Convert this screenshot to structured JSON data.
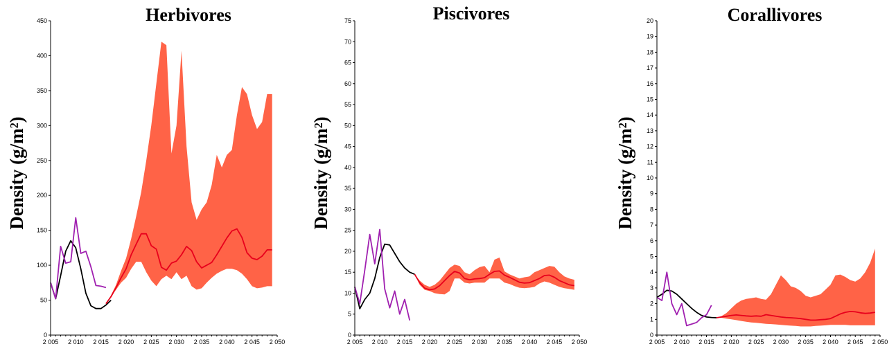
{
  "colors": {
    "band": "#ff6347",
    "median": "#e8001c",
    "model_fit": "#000000",
    "observed": "#a020b0"
  },
  "chart_data": [
    {
      "type": "line",
      "title": "Herbivores",
      "ylabel": "Density (g/m²)",
      "xlabel": "",
      "xlim": [
        2005,
        2050
      ],
      "ylim": [
        0,
        450
      ],
      "xticks": [
        2005,
        2010,
        2015,
        2020,
        2025,
        2030,
        2035,
        2040,
        2045,
        2050
      ],
      "xtick_labels": [
        "2 005",
        "2 010",
        "2 015",
        "2 020",
        "2 025",
        "2 030",
        "2 035",
        "2 040",
        "2 045",
        "2 050"
      ],
      "yticks": [
        0,
        50,
        100,
        150,
        200,
        250,
        300,
        350,
        400,
        450
      ],
      "ytick_labels": [
        "0",
        "50",
        "100",
        "150",
        "200",
        "250",
        "300",
        "350",
        "400",
        "450"
      ],
      "observed": {
        "x": [
          2005,
          2006,
          2007,
          2008,
          2009,
          2010,
          2011,
          2012,
          2013,
          2014,
          2015,
          2016
        ],
        "y": [
          75,
          52,
          127,
          103,
          105,
          168,
          117,
          120,
          98,
          71,
          70,
          68
        ]
      },
      "model_fit": {
        "x": [
          2005,
          2006,
          2007,
          2008,
          2009,
          2010,
          2011,
          2012,
          2013,
          2014,
          2015,
          2016,
          2017
        ],
        "y": [
          75,
          52,
          85,
          120,
          135,
          125,
          95,
          60,
          42,
          38,
          38,
          43,
          50
        ]
      },
      "median": {
        "x": [
          2016,
          2017,
          2018,
          2019,
          2020,
          2021,
          2022,
          2023,
          2024,
          2025,
          2026,
          2027,
          2028,
          2029,
          2030,
          2031,
          2032,
          2033,
          2034,
          2035,
          2036,
          2037,
          2038,
          2039,
          2040,
          2041,
          2042,
          2043,
          2044,
          2045,
          2046,
          2047,
          2048,
          2049
        ],
        "y": [
          45,
          55,
          68,
          82,
          95,
          115,
          130,
          145,
          145,
          128,
          123,
          97,
          93,
          103,
          106,
          115,
          127,
          121,
          105,
          96,
          100,
          104,
          115,
          127,
          139,
          149,
          152,
          140,
          118,
          110,
          108,
          113,
          122,
          122
        ]
      },
      "band": {
        "x": [
          2016,
          2017,
          2018,
          2019,
          2020,
          2021,
          2022,
          2023,
          2024,
          2025,
          2026,
          2027,
          2028,
          2029,
          2030,
          2031,
          2032,
          2033,
          2034,
          2035,
          2036,
          2037,
          2038,
          2039,
          2040,
          2041,
          2042,
          2043,
          2044,
          2045,
          2046,
          2047,
          2048,
          2049
        ],
        "upper": [
          45,
          57,
          72,
          92,
          110,
          138,
          170,
          205,
          250,
          300,
          360,
          420,
          415,
          260,
          300,
          407,
          270,
          190,
          165,
          180,
          190,
          215,
          258,
          240,
          258,
          265,
          315,
          355,
          345,
          315,
          295,
          305,
          345,
          345
        ],
        "lower": [
          45,
          55,
          65,
          75,
          82,
          95,
          105,
          105,
          90,
          78,
          70,
          80,
          85,
          80,
          90,
          80,
          85,
          70,
          65,
          67,
          75,
          82,
          88,
          92,
          95,
          95,
          93,
          88,
          80,
          70,
          67,
          68,
          70,
          70
        ]
      }
    },
    {
      "type": "line",
      "title": "Piscivores",
      "ylabel": "Density (g/m²)",
      "xlabel": "",
      "xlim": [
        2005,
        2050
      ],
      "ylim": [
        0,
        75
      ],
      "xticks": [
        2005,
        2010,
        2015,
        2020,
        2025,
        2030,
        2035,
        2040,
        2045,
        2050
      ],
      "xtick_labels": [
        "2 005",
        "2 010",
        "2 015",
        "2 020",
        "2 025",
        "2 030",
        "2 035",
        "2 040",
        "2 045",
        "2 050"
      ],
      "yticks": [
        0,
        5,
        10,
        15,
        20,
        25,
        30,
        35,
        40,
        45,
        50,
        55,
        60,
        65,
        70,
        75
      ],
      "ytick_labels": [
        "0",
        "5",
        "10",
        "15",
        "20",
        "25",
        "30",
        "35",
        "40",
        "45",
        "50",
        "55",
        "60",
        "65",
        "70",
        "75"
      ],
      "observed": {
        "x": [
          2005,
          2006,
          2007,
          2008,
          2009,
          2010,
          2011,
          2012,
          2013,
          2014,
          2015,
          2016
        ],
        "y": [
          11.5,
          7.5,
          15.5,
          24,
          17,
          25.2,
          11,
          6.5,
          10.5,
          5,
          8.5,
          3.5
        ]
      },
      "model_fit": {
        "x": [
          2005,
          2006,
          2007,
          2008,
          2009,
          2010,
          2011,
          2012,
          2013,
          2014,
          2015,
          2016,
          2017
        ],
        "y": [
          11.5,
          6.3,
          8.5,
          10,
          13.5,
          18.5,
          21.7,
          21.5,
          19.5,
          17.5,
          16,
          15,
          14.5
        ]
      },
      "median": {
        "x": [
          2017,
          2018,
          2019,
          2020,
          2021,
          2022,
          2023,
          2024,
          2025,
          2026,
          2027,
          2028,
          2029,
          2030,
          2031,
          2032,
          2033,
          2034,
          2035,
          2036,
          2037,
          2038,
          2039,
          2040,
          2041,
          2042,
          2043,
          2044,
          2045,
          2046,
          2047,
          2048,
          2049
        ],
        "y": [
          14.5,
          12.5,
          11.2,
          10.8,
          11.0,
          11.8,
          13,
          14.2,
          15.2,
          14.8,
          13.5,
          13.2,
          13.4,
          13.5,
          13.7,
          14.5,
          15.2,
          15.3,
          14.3,
          13.8,
          13.2,
          12.6,
          12.4,
          12.5,
          13,
          13.5,
          14.2,
          14.3,
          13.8,
          13,
          12.5,
          12,
          11.8
        ]
      },
      "band": {
        "x": [
          2017,
          2018,
          2019,
          2020,
          2021,
          2022,
          2023,
          2024,
          2025,
          2026,
          2027,
          2028,
          2029,
          2030,
          2031,
          2032,
          2033,
          2034,
          2035,
          2036,
          2037,
          2038,
          2039,
          2040,
          2041,
          2042,
          2043,
          2044,
          2045,
          2046,
          2047,
          2048,
          2049
        ],
        "upper": [
          14.5,
          13,
          12,
          11.5,
          12,
          13,
          14.5,
          16,
          16.8,
          16.5,
          15,
          14.5,
          15.5,
          16.2,
          16.5,
          15,
          18,
          18.5,
          15.2,
          14.5,
          14,
          13.5,
          13.8,
          14,
          15,
          15.5,
          16,
          16.5,
          16.3,
          15,
          14,
          13.5,
          13.2
        ],
        "lower": [
          14.5,
          12,
          10.8,
          10.5,
          10,
          9.8,
          9.7,
          10.5,
          13.5,
          13.5,
          12.5,
          12.3,
          12.5,
          12.5,
          12.5,
          13.5,
          13.5,
          13.5,
          12.5,
          12.2,
          11.7,
          11.3,
          11.2,
          11.3,
          11.5,
          12.3,
          12.8,
          12.5,
          12,
          11.5,
          11.2,
          11,
          10.8
        ]
      }
    },
    {
      "type": "line",
      "title": "Corallivores",
      "ylabel": "Density (g/m²)",
      "xlabel": "",
      "xlim": [
        2005,
        2050
      ],
      "ylim": [
        0,
        20
      ],
      "xticks": [
        2005,
        2010,
        2015,
        2020,
        2025,
        2030,
        2035,
        2040,
        2045,
        2050
      ],
      "xtick_labels": [
        "2 005",
        "2 010",
        "2 015",
        "2 020",
        "2 025",
        "2 030",
        "2 035",
        "2 040",
        "2 045",
        "2 050"
      ],
      "yticks": [
        0,
        1,
        2,
        3,
        4,
        5,
        6,
        7,
        8,
        9,
        10,
        11,
        12,
        13,
        14,
        15,
        16,
        17,
        18,
        19,
        20
      ],
      "ytick_labels": [
        "0",
        "1",
        "2",
        "3",
        "4",
        "5",
        "6",
        "7",
        "8",
        "9",
        "10",
        "11",
        "12",
        "13",
        "14",
        "15",
        "16",
        "17",
        "18",
        "19",
        "20"
      ],
      "observed": {
        "x": [
          2005,
          2006,
          2007,
          2008,
          2009,
          2010,
          2011,
          2012,
          2013,
          2014,
          2015,
          2016
        ],
        "y": [
          2.4,
          2.2,
          4.0,
          2.0,
          1.3,
          2.0,
          0.6,
          0.7,
          0.8,
          1.1,
          1.3,
          1.9
        ]
      },
      "model_fit": {
        "x": [
          2005,
          2006,
          2007,
          2008,
          2009,
          2010,
          2011,
          2012,
          2013,
          2014,
          2015,
          2016,
          2017
        ],
        "y": [
          2.4,
          2.6,
          2.85,
          2.8,
          2.6,
          2.3,
          2.0,
          1.7,
          1.45,
          1.25,
          1.15,
          1.12,
          1.1
        ]
      },
      "median": {
        "x": [
          2017,
          2018,
          2019,
          2020,
          2021,
          2022,
          2023,
          2024,
          2025,
          2026,
          2027,
          2028,
          2029,
          2030,
          2031,
          2032,
          2033,
          2034,
          2035,
          2036,
          2037,
          2038,
          2039,
          2040,
          2041,
          2042,
          2043,
          2044,
          2045,
          2046,
          2047,
          2048,
          2049
        ],
        "y": [
          1.1,
          1.15,
          1.2,
          1.25,
          1.28,
          1.25,
          1.22,
          1.2,
          1.22,
          1.2,
          1.3,
          1.25,
          1.2,
          1.15,
          1.12,
          1.1,
          1.08,
          1.05,
          1.0,
          0.95,
          0.95,
          0.98,
          1.0,
          1.05,
          1.2,
          1.35,
          1.45,
          1.5,
          1.48,
          1.42,
          1.38,
          1.4,
          1.45
        ]
      },
      "band": {
        "x": [
          2017,
          2018,
          2019,
          2020,
          2021,
          2022,
          2023,
          2024,
          2025,
          2026,
          2027,
          2028,
          2029,
          2030,
          2031,
          2032,
          2033,
          2034,
          2035,
          2036,
          2037,
          2038,
          2039,
          2040,
          2041,
          2042,
          2043,
          2044,
          2045,
          2046,
          2047,
          2048,
          2049
        ],
        "upper": [
          1.1,
          1.2,
          1.4,
          1.7,
          2.0,
          2.2,
          2.3,
          2.35,
          2.4,
          2.3,
          2.25,
          2.6,
          3.2,
          3.8,
          3.5,
          3.1,
          3.0,
          2.8,
          2.5,
          2.4,
          2.5,
          2.6,
          2.9,
          3.2,
          3.8,
          3.85,
          3.7,
          3.5,
          3.4,
          3.6,
          4.0,
          4.6,
          5.5
        ],
        "lower": [
          1.1,
          1.1,
          1.05,
          1.0,
          0.95,
          0.9,
          0.85,
          0.8,
          0.78,
          0.75,
          0.72,
          0.7,
          0.68,
          0.65,
          0.62,
          0.6,
          0.58,
          0.55,
          0.55,
          0.55,
          0.58,
          0.6,
          0.62,
          0.65,
          0.65,
          0.65,
          0.65,
          0.62,
          0.62,
          0.62,
          0.62,
          0.62,
          0.62
        ]
      }
    }
  ]
}
